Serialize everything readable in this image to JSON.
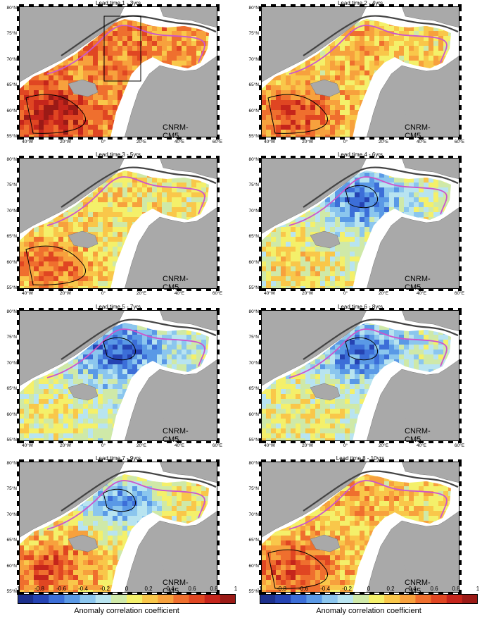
{
  "chart_data": {
    "type": "heatmap",
    "model_label": "CNRM-CM5",
    "lat_ticks": [
      "55°N",
      "60°N",
      "65°N",
      "70°N",
      "75°N",
      "80°N"
    ],
    "lon_ticks": [
      "40°W",
      "20°W",
      "0°",
      "20°E",
      "40°E",
      "60°E"
    ],
    "panels": [
      {
        "title": "Lead time 1 - 3yrs",
        "mean_level": 0.35
      },
      {
        "title": "Lead time 2 - 4yrs",
        "mean_level": 0.15
      },
      {
        "title": "Lead time 3 - 5yrs",
        "mean_level": 0.05
      },
      {
        "title": "Lead time 4 - 6yrs",
        "mean_level": -0.05
      },
      {
        "title": "Lead time 5 - 7yrs",
        "mean_level": -0.15
      },
      {
        "title": "Lead time 6 - 8yrs",
        "mean_level": -0.1
      },
      {
        "title": "Lead time 7 - 9yrs",
        "mean_level": 0.1
      },
      {
        "title": "Lead time 8 - 10yrs",
        "mean_level": 0.15
      }
    ],
    "colorbar": {
      "min": -1,
      "max": 1,
      "tick_labels": [
        "-1",
        "-0.8",
        "-0.6",
        "-0.4",
        "-0.2",
        "0",
        "0.2",
        "0.4",
        "0.6",
        "0.8",
        "1"
      ],
      "label": "Anomaly correlation coefficient",
      "colors": [
        "#1c2f8c",
        "#2543b3",
        "#3c6ed8",
        "#5a99e6",
        "#8bc6ee",
        "#b8e4f0",
        "#cfe9a8",
        "#f4f06a",
        "#f9c74a",
        "#f7a13d",
        "#ef6f2e",
        "#e04622",
        "#c5251b",
        "#9b1a16"
      ]
    },
    "colors": {
      "land": "#a9a9a9",
      "contour_dark": "#444444",
      "contour_magenta": "#cc55cc",
      "significance": "#000000"
    }
  }
}
